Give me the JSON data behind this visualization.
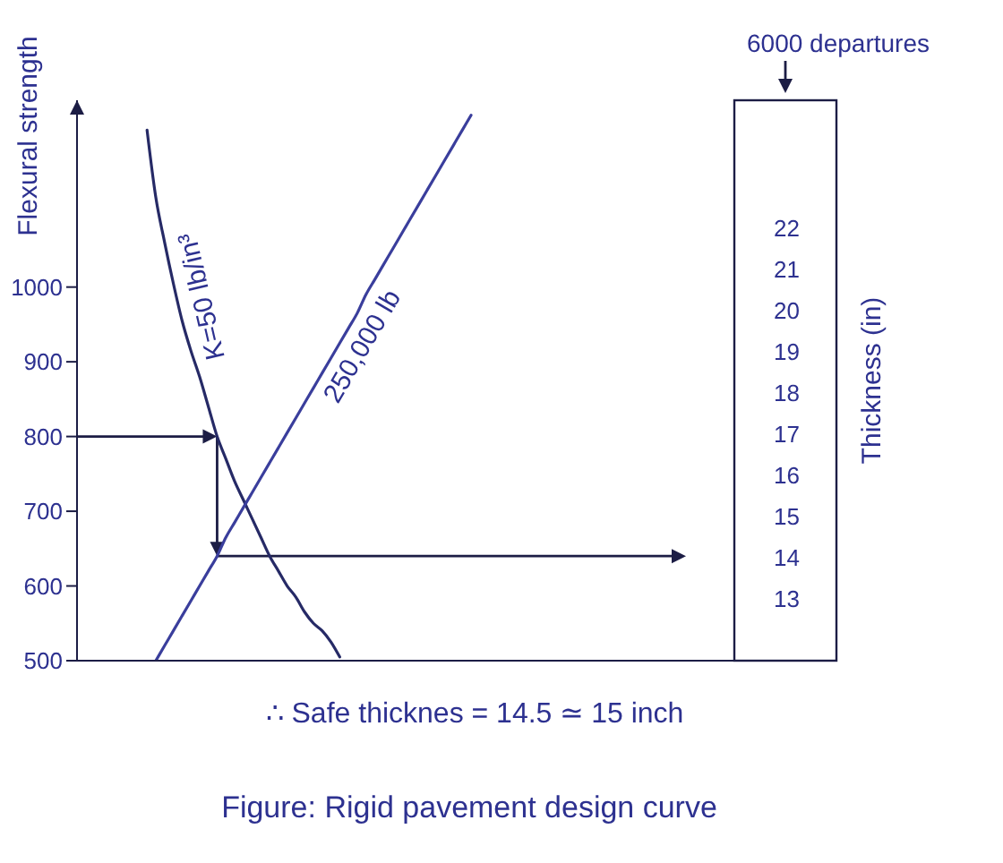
{
  "chart_data": {
    "type": "line",
    "ylabel": "Flexural strength",
    "y2label": "Thickness (in)",
    "categories": [
      null,
      null,
      null,
      null,
      null,
      null,
      null,
      null,
      null,
      null,
      null,
      null,
      null,
      null,
      null,
      null,
      null,
      null,
      null,
      null,
      null,
      null,
      null,
      null,
      null,
      null,
      null,
      null,
      null,
      null,
      null,
      null,
      null,
      null,
      null,
      null,
      null,
      null,
      null,
      null,
      null,
      null,
      null,
      null,
      null,
      null
    ],
    "series": [
      {
        "name": "K=50 lb/in³",
        "color": "#262a66",
        "values": [
          null,
          null,
          null,
          null,
          null,
          null,
          null,
          null,
          1210,
          1120,
          1060,
          1005,
          955,
          915,
          880,
          840,
          800,
          770,
          740,
          715,
          690,
          665,
          640,
          620,
          600,
          585,
          565,
          550,
          540,
          525,
          505,
          null,
          null,
          null,
          null,
          null,
          null,
          null,
          null,
          null,
          null,
          null,
          null,
          null,
          null,
          null
        ]
      },
      {
        "name": "250,000 lb",
        "color": "#3a3e9c",
        "values": [
          null,
          null,
          null,
          null,
          null,
          null,
          null,
          null,
          null,
          500,
          520,
          540,
          560,
          580,
          600,
          620,
          640,
          665,
          685,
          705,
          725,
          745,
          765,
          785,
          805,
          825,
          845,
          865,
          885,
          905,
          925,
          945,
          965,
          990,
          1010,
          1030,
          1050,
          1070,
          1090,
          1110,
          1130,
          1150,
          1170,
          1190,
          1210,
          1230
        ]
      }
    ],
    "ylim": [
      500,
      1250
    ],
    "yticks": [
      500,
      600,
      700,
      800,
      900,
      1000
    ],
    "y2lim": [
      11.5,
      25.1
    ],
    "y2ticks": [
      13,
      14,
      15,
      16,
      17,
      18,
      19,
      20,
      21,
      22
    ],
    "annotations": [
      "6000 departures",
      "∴ Safe thicknes = 14.5 ≃ 15 inch",
      "Figure: Rigid pavement design curve"
    ]
  }
}
